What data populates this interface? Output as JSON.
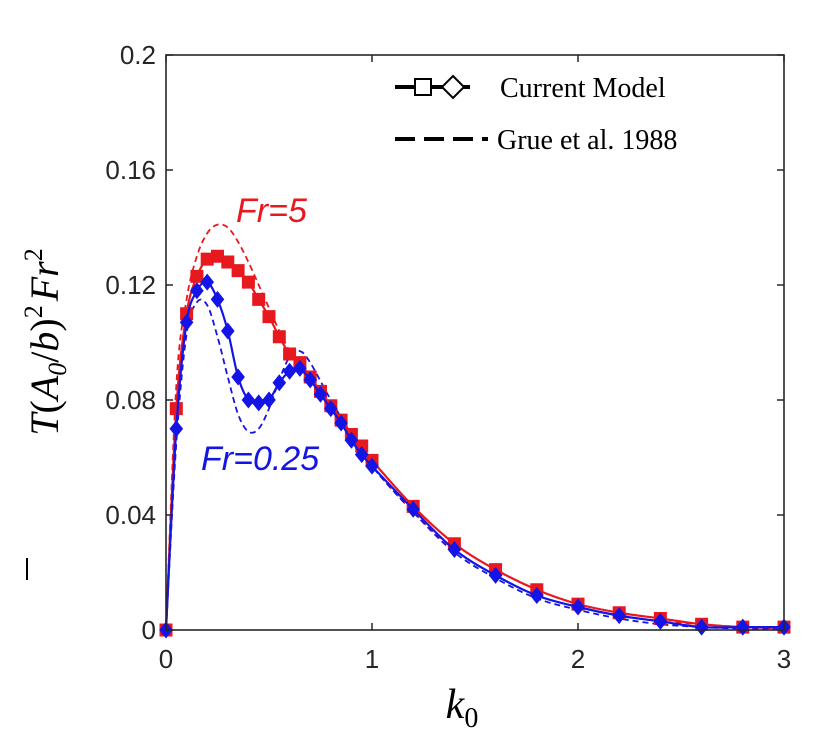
{
  "chart_data": {
    "type": "line",
    "xlabel": "k0",
    "ylabel": "T(A0/b)^2 Fr^2",
    "xlim": [
      0,
      3
    ],
    "ylim": [
      0,
      0.2
    ],
    "xticks": [
      "0",
      "1",
      "2",
      "3"
    ],
    "yticks": [
      "0",
      "0.04",
      "0.08",
      "0.12",
      "0.16",
      "0.2"
    ],
    "grid": false,
    "legend": {
      "placement": "top-right",
      "entries": [
        "Current Model",
        "Grue et al. 1988"
      ]
    },
    "annotations": [
      "Fr=5",
      "Fr=0.25"
    ],
    "colors": {
      "fr5": "#e8191e",
      "fr025": "#1414e6"
    },
    "series": [
      {
        "group": "Fr=5",
        "style": "model-markers-square",
        "x": [
          0,
          0.05,
          0.1,
          0.15,
          0.2,
          0.25,
          0.3,
          0.35,
          0.4,
          0.45,
          0.5,
          0.55,
          0.6,
          0.65,
          0.7,
          0.75,
          0.8,
          0.85,
          0.9,
          0.95,
          1.0,
          1.2,
          1.4,
          1.6,
          1.8,
          2.0,
          2.2,
          2.4,
          2.6,
          2.8,
          3.0
        ],
        "y": [
          0,
          0.077,
          0.11,
          0.123,
          0.129,
          0.13,
          0.128,
          0.125,
          0.121,
          0.115,
          0.109,
          0.102,
          0.096,
          0.093,
          0.088,
          0.083,
          0.078,
          0.073,
          0.068,
          0.064,
          0.059,
          0.043,
          0.03,
          0.021,
          0.014,
          0.009,
          0.006,
          0.004,
          0.002,
          0.001,
          0.001
        ]
      },
      {
        "group": "Fr=5",
        "style": "grue-dashed",
        "x": [
          0,
          0.05,
          0.1,
          0.15,
          0.2,
          0.25,
          0.3,
          0.35,
          0.4,
          0.45,
          0.5,
          0.55,
          0.6,
          0.65,
          0.7,
          0.8,
          0.9,
          1.0,
          1.2,
          1.4,
          1.6,
          1.8,
          2.0,
          2.2,
          2.4,
          2.6,
          2.8,
          3.0
        ],
        "y": [
          0,
          0.085,
          0.115,
          0.13,
          0.138,
          0.141,
          0.14,
          0.135,
          0.128,
          0.12,
          0.112,
          0.104,
          0.097,
          0.091,
          0.087,
          0.077,
          0.067,
          0.057,
          0.041,
          0.028,
          0.019,
          0.012,
          0.008,
          0.005,
          0.003,
          0.002,
          0.001,
          0.0005
        ]
      },
      {
        "group": "Fr=0.25",
        "style": "model-markers-diamond",
        "x": [
          0,
          0.05,
          0.1,
          0.15,
          0.2,
          0.25,
          0.3,
          0.35,
          0.4,
          0.45,
          0.5,
          0.55,
          0.6,
          0.65,
          0.7,
          0.75,
          0.8,
          0.85,
          0.9,
          0.95,
          1.0,
          1.2,
          1.4,
          1.6,
          1.8,
          2.0,
          2.2,
          2.4,
          2.6,
          2.8,
          3.0
        ],
        "y": [
          0,
          0.07,
          0.107,
          0.118,
          0.121,
          0.115,
          0.104,
          0.088,
          0.08,
          0.079,
          0.08,
          0.086,
          0.09,
          0.091,
          0.087,
          0.082,
          0.077,
          0.072,
          0.066,
          0.061,
          0.057,
          0.042,
          0.028,
          0.019,
          0.012,
          0.008,
          0.005,
          0.003,
          0.001,
          0.001,
          0.001
        ]
      },
      {
        "group": "Fr=0.25",
        "style": "grue-dashed",
        "x": [
          0,
          0.05,
          0.1,
          0.15,
          0.2,
          0.25,
          0.3,
          0.35,
          0.4,
          0.45,
          0.5,
          0.55,
          0.6,
          0.65,
          0.7,
          0.8,
          0.9,
          1.0,
          1.2,
          1.4,
          1.6,
          1.8,
          2.0,
          2.2,
          2.4,
          2.6,
          2.8,
          3.0
        ],
        "y": [
          0,
          0.065,
          0.103,
          0.114,
          0.113,
          0.102,
          0.088,
          0.075,
          0.069,
          0.07,
          0.077,
          0.087,
          0.095,
          0.097,
          0.093,
          0.08,
          0.068,
          0.057,
          0.041,
          0.027,
          0.018,
          0.011,
          0.007,
          0.004,
          0.002,
          0.001,
          0.0005,
          0.0003
        ]
      }
    ]
  }
}
